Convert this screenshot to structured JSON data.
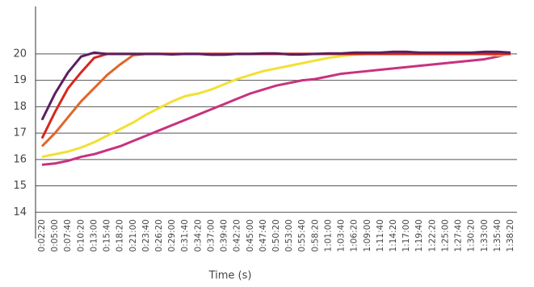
{
  "chart_data": {
    "type": "line",
    "x_label": "Time (s)",
    "categories": [
      "0:02:20",
      "0:05:00",
      "0:07:40",
      "0:10:20",
      "0:13:00",
      "0:15:40",
      "0:18:20",
      "0:21:00",
      "0:23:40",
      "0:26:20",
      "0:29:00",
      "0:31:40",
      "0:34:20",
      "0:37:00",
      "0:39:40",
      "0:42:20",
      "0:45:00",
      "0:47:40",
      "0:50:20",
      "0:53:00",
      "0:55:40",
      "0:58:20",
      "1:01:00",
      "1:03:40",
      "1:06:20",
      "1:09:00",
      "1:11:40",
      "1:14:20",
      "1:17:00",
      "1:19:40",
      "1:22:20",
      "1:25:00",
      "1:27:40",
      "1:30:20",
      "1:33:00",
      "1:35:40",
      "1:38:20"
    ],
    "ylim": [
      13,
      21.8
    ],
    "yticks": [
      14,
      15,
      16,
      17,
      18,
      19,
      20
    ],
    "grid": true,
    "series": [
      {
        "color": "#c8327f",
        "values": [
          15.8,
          15.85,
          15.95,
          16.1,
          16.2,
          16.35,
          16.5,
          16.7,
          16.9,
          17.1,
          17.3,
          17.5,
          17.7,
          17.9,
          18.1,
          18.3,
          18.5,
          18.65,
          18.8,
          18.9,
          19.0,
          19.05,
          19.15,
          19.25,
          19.3,
          19.35,
          19.4,
          19.45,
          19.5,
          19.55,
          19.6,
          19.65,
          19.7,
          19.75,
          19.8,
          19.9,
          20.05
        ]
      },
      {
        "color": "#f2e034",
        "values": [
          16.1,
          16.2,
          16.3,
          16.45,
          16.65,
          16.9,
          17.15,
          17.4,
          17.7,
          17.95,
          18.2,
          18.4,
          18.5,
          18.65,
          18.85,
          19.05,
          19.2,
          19.35,
          19.45,
          19.55,
          19.65,
          19.75,
          19.85,
          19.92,
          19.97,
          20.0,
          20.0,
          20.0,
          20.0,
          20.0,
          20.0,
          20.0,
          20.0,
          20.0,
          20.0,
          19.95,
          20.0
        ]
      },
      {
        "color": "#e0662a",
        "values": [
          16.5,
          17.0,
          17.6,
          18.2,
          18.7,
          19.2,
          19.6,
          19.95,
          20.0,
          20.0,
          20.0,
          20.0,
          20.0,
          20.0,
          20.0,
          20.0,
          20.0,
          20.0,
          20.0,
          20.0,
          20.0,
          20.0,
          20.0,
          20.0,
          20.0,
          20.0,
          20.0,
          20.0,
          20.0,
          20.0,
          20.0,
          20.0,
          20.0,
          20.0,
          20.0,
          20.0,
          20.0
        ]
      },
      {
        "color": "#d7261e",
        "values": [
          16.8,
          17.8,
          18.7,
          19.3,
          19.85,
          20.0,
          20.0,
          20.0,
          20.0,
          20.0,
          20.0,
          20.0,
          20.0,
          20.0,
          20.0,
          20.0,
          20.0,
          20.0,
          20.0,
          20.0,
          20.0,
          20.0,
          20.0,
          20.0,
          20.0,
          20.0,
          20.0,
          20.0,
          20.0,
          20.0,
          20.0,
          20.0,
          20.0,
          20.0,
          20.0,
          20.0,
          20.0
        ]
      },
      {
        "color": "#5b1f5e",
        "values": [
          17.5,
          18.5,
          19.3,
          19.9,
          20.05,
          20.0,
          20.0,
          20.0,
          20.0,
          20.0,
          19.98,
          20.0,
          20.0,
          19.97,
          19.97,
          20.0,
          20.0,
          20.02,
          20.02,
          19.98,
          19.98,
          20.0,
          20.02,
          20.02,
          20.05,
          20.05,
          20.05,
          20.08,
          20.08,
          20.05,
          20.05,
          20.05,
          20.05,
          20.05,
          20.08,
          20.08,
          20.05
        ]
      }
    ]
  }
}
